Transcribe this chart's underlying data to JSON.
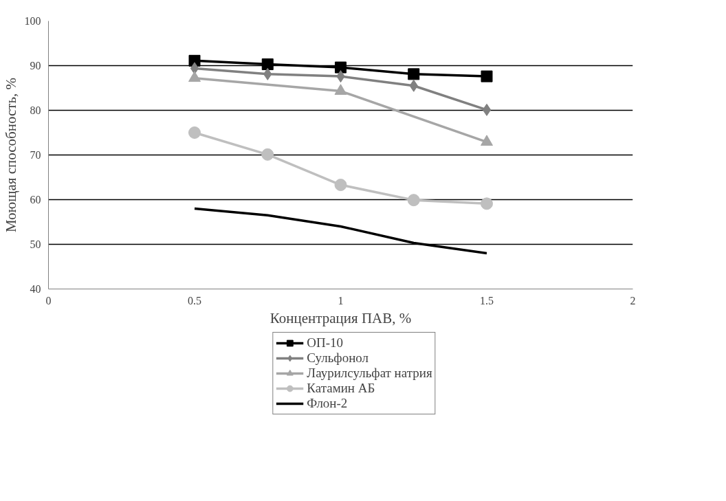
{
  "chart_data": {
    "type": "line",
    "xlabel": "Концентрация ПАВ, %",
    "ylabel": "Моющая способность, %",
    "xlim": [
      0,
      2
    ],
    "xticks": [
      0,
      0.5,
      1,
      1.5,
      2
    ],
    "ylim": [
      40,
      100
    ],
    "yticks": [
      40,
      50,
      60,
      70,
      80,
      90,
      100
    ],
    "grid": "y",
    "legend": "bottom",
    "line_style": "solid",
    "series": [
      {
        "name": "ОП-10",
        "color": "#000000",
        "marker": "square",
        "x": [
          0.5,
          0.75,
          1,
          1.25,
          1.5
        ],
        "values": [
          91.1,
          90.3,
          89.6,
          88.1,
          87.6
        ]
      },
      {
        "name": "Сульфонол",
        "color": "#808080",
        "marker": "diamond",
        "x": [
          0.5,
          0.75,
          1,
          1.25,
          1.5
        ],
        "values": [
          89.4,
          88.1,
          87.6,
          85.5,
          80.1
        ]
      },
      {
        "name": "Лаурилсульфат натрия",
        "color": "#a6a6a6",
        "marker": "triangle",
        "x": [
          0.5,
          1,
          1.5
        ],
        "values": [
          87.2,
          84.3,
          72.9
        ]
      },
      {
        "name": "Катамин АБ",
        "color": "#bfbfbf",
        "marker": "circle",
        "x": [
          0.5,
          0.75,
          1,
          1.25,
          1.5
        ],
        "values": [
          75.0,
          70.1,
          63.3,
          59.9,
          59.1
        ]
      },
      {
        "name": "Флон-2",
        "color": "#000000",
        "marker": "none",
        "x": [
          0.5,
          0.75,
          1,
          1.25,
          1.5
        ],
        "values": [
          58.0,
          56.5,
          54.0,
          50.3,
          48.0
        ]
      }
    ]
  }
}
